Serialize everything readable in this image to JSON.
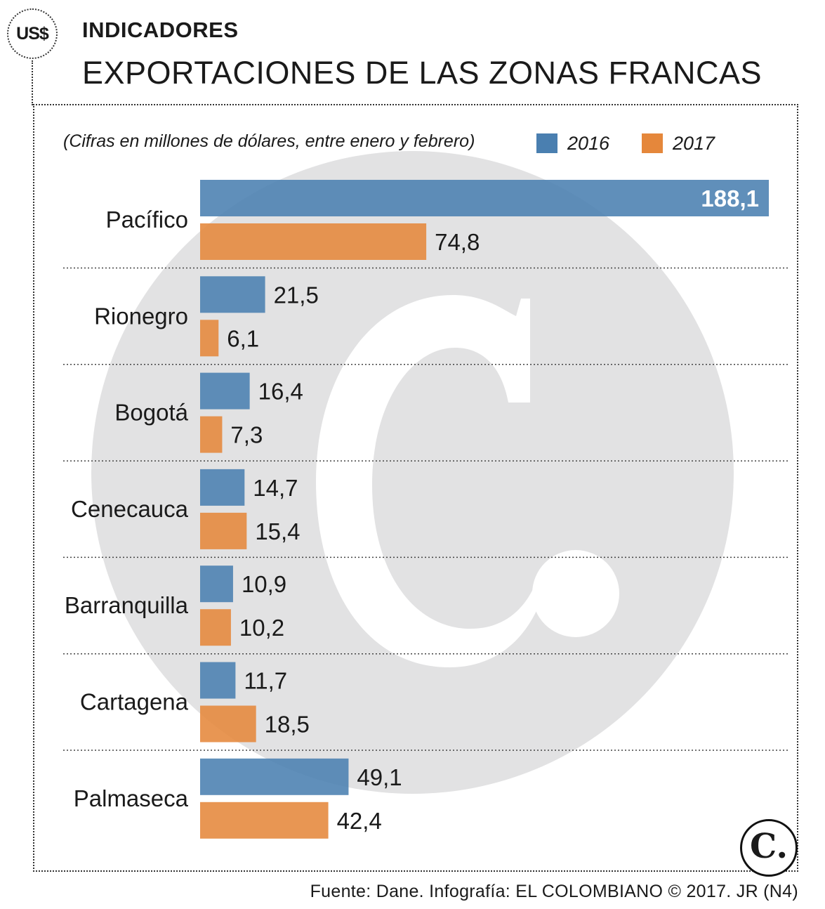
{
  "badge": {
    "label": "US$"
  },
  "header": {
    "kicker": "INDICADORES",
    "title": "EXPORTACIONES DE LAS ZONAS FRANCAS"
  },
  "seal": {
    "label": "C."
  },
  "source": "Fuente: Dane. Infografía: EL COLOMBIANO © 2017. JR (N4)",
  "colors": {
    "series_2016": "#4a7fb0",
    "series_2017": "#e5873b",
    "watermark": "#e2e2e3"
  },
  "chart_data": {
    "type": "bar",
    "orientation": "horizontal",
    "subtitle": "(Cifras en millones de dólares, entre enero y febrero)",
    "categories": [
      "Pacífico",
      "Rionegro",
      "Bogotá",
      "Cenecauca",
      "Barranquilla",
      "Cartagena",
      "Palmaseca"
    ],
    "series": [
      {
        "name": "2016",
        "color": "#4a7fb0",
        "values": [
          188.1,
          21.5,
          16.4,
          14.7,
          10.9,
          11.7,
          49.1
        ],
        "labels": [
          "188,1",
          "21,5",
          "16,4",
          "14,7",
          "10,9",
          "11,7",
          "49,1"
        ]
      },
      {
        "name": "2017",
        "color": "#e5873b",
        "values": [
          74.8,
          6.1,
          7.3,
          15.4,
          10.2,
          18.5,
          42.4
        ],
        "labels": [
          "74,8",
          "6,1",
          "7,3",
          "15,4",
          "10,2",
          "18,5",
          "42,4"
        ]
      }
    ],
    "xlim": [
      0,
      188.1
    ],
    "grid": false,
    "legend": "top-right"
  }
}
